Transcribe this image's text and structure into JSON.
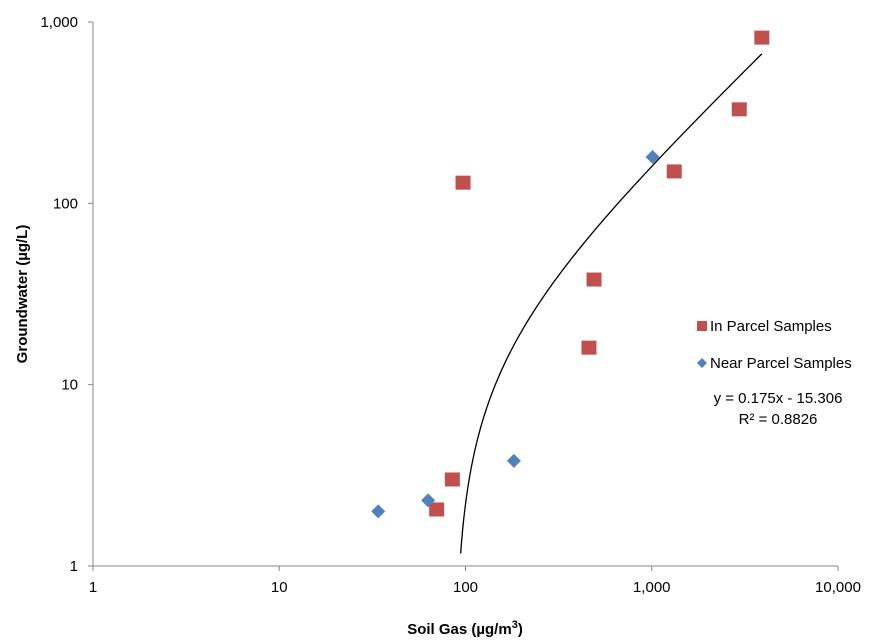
{
  "chart_data": {
    "type": "scatter",
    "xscale": "log",
    "yscale": "log",
    "xlim": [
      1,
      10000
    ],
    "ylim": [
      1,
      1000
    ],
    "xlabel": "Soil Gas (µg/m",
    "xlabel_sup": "3",
    "xlabel_close": ")",
    "ylabel": "Groundwater (µg/L)",
    "xticks": [
      {
        "value": 1,
        "label": "1"
      },
      {
        "value": 10,
        "label": "10"
      },
      {
        "value": 100,
        "label": "100"
      },
      {
        "value": 1000,
        "label": "1,000"
      },
      {
        "value": 10000,
        "label": "10,000"
      }
    ],
    "yticks": [
      {
        "value": 1,
        "label": "1"
      },
      {
        "value": 10,
        "label": "10"
      },
      {
        "value": 100,
        "label": "100"
      },
      {
        "value": 1000,
        "label": "1,000"
      }
    ],
    "grid": false,
    "legend_position": "right",
    "series": [
      {
        "name": "In Parcel Samples",
        "marker": "square",
        "color": "#C0504D",
        "points": [
          {
            "x": 70,
            "y": 2.05
          },
          {
            "x": 85,
            "y": 3.0
          },
          {
            "x": 97,
            "y": 130
          },
          {
            "x": 460,
            "y": 16
          },
          {
            "x": 490,
            "y": 38
          },
          {
            "x": 1320,
            "y": 150
          },
          {
            "x": 2950,
            "y": 330
          },
          {
            "x": 3900,
            "y": 820
          }
        ]
      },
      {
        "name": "Near Parcel Samples",
        "marker": "diamond",
        "color": "#4F81BD",
        "points": [
          {
            "x": 34,
            "y": 2.0
          },
          {
            "x": 63,
            "y": 2.3
          },
          {
            "x": 182,
            "y": 3.8
          },
          {
            "x": 1010,
            "y": 180
          }
        ]
      }
    ],
    "trendline": {
      "type": "linear",
      "slope": 0.175,
      "intercept": -15.306,
      "x_range": [
        93,
        3900
      ],
      "color": "#000000",
      "equation": "y = 0.175x - 15.306",
      "r_squared": "R² = 0.8826"
    }
  }
}
